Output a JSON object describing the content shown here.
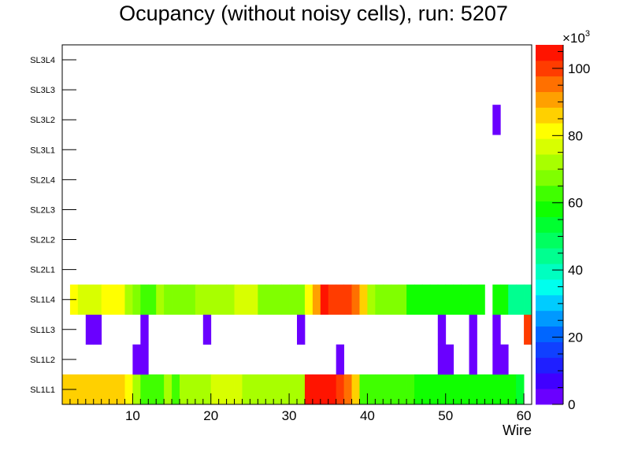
{
  "chart_data": {
    "type": "heatmap",
    "title": "Ocupancy (without noisy cells), run: 5207",
    "xlabel": "Wire",
    "ylabel": "",
    "xlim": [
      1,
      61
    ],
    "x_ticks": [
      10,
      20,
      30,
      40,
      50,
      60
    ],
    "y_categories": [
      "SL1L1",
      "SL1L2",
      "SL1L3",
      "SL1L4",
      "SL2L1",
      "SL2L2",
      "SL2L3",
      "SL2L4",
      "SL3L1",
      "SL3L2",
      "SL3L3",
      "SL3L4"
    ],
    "z_range": [
      0,
      107000
    ],
    "z_ticks": [
      0,
      20,
      40,
      60,
      80,
      100
    ],
    "z_multiplier_label": "×10",
    "z_multiplier_exponent": "3",
    "palette": [
      "#6a00ff",
      "#4000ff",
      "#1f1fff",
      "#1040ff",
      "#0066ff",
      "#0099ff",
      "#00ccff",
      "#00ffee",
      "#00ffc0",
      "#00ff90",
      "#00ff60",
      "#00ff30",
      "#10ff00",
      "#40ff00",
      "#80ff00",
      "#a8ff00",
      "#d8ff00",
      "#ffff00",
      "#ffd000",
      "#ffa000",
      "#ff7000",
      "#ff3c00",
      "#ff1400"
    ],
    "rows": [
      {
        "layer": "SL1L1",
        "values": [
          86000,
          86000,
          86000,
          86000,
          86000,
          86000,
          86000,
          86000,
          80000,
          72000,
          64000,
          64000,
          64000,
          72000,
          64000,
          72000,
          72000,
          72000,
          72000,
          78000,
          78000,
          78000,
          78000,
          74000,
          74000,
          74000,
          74000,
          74000,
          74000,
          74000,
          74000,
          104000,
          104000,
          104000,
          104000,
          98000,
          94000,
          86000,
          64000,
          64000,
          64000,
          64000,
          62000,
          62000,
          62000,
          56000,
          56000,
          56000,
          56000,
          56000,
          56000,
          56000,
          56000,
          56000,
          56000,
          56000,
          56000,
          56000,
          54000,
          null
        ]
      },
      {
        "layer": "SL1L2",
        "values": [
          null,
          null,
          null,
          null,
          null,
          null,
          null,
          null,
          null,
          3000,
          3000,
          null,
          null,
          null,
          null,
          null,
          null,
          null,
          null,
          null,
          null,
          null,
          null,
          null,
          null,
          null,
          null,
          null,
          null,
          null,
          null,
          null,
          null,
          null,
          null,
          3000,
          null,
          null,
          null,
          null,
          null,
          null,
          null,
          null,
          null,
          null,
          null,
          null,
          3000,
          3000,
          null,
          null,
          3000,
          null,
          null,
          3000,
          3000,
          null,
          null,
          null
        ]
      },
      {
        "layer": "SL1L3",
        "values": [
          null,
          null,
          null,
          3000,
          3000,
          null,
          null,
          null,
          null,
          null,
          3000,
          null,
          null,
          null,
          null,
          null,
          null,
          null,
          3000,
          null,
          null,
          null,
          null,
          null,
          null,
          null,
          null,
          null,
          null,
          null,
          3000,
          null,
          null,
          null,
          null,
          null,
          null,
          null,
          null,
          null,
          null,
          null,
          null,
          null,
          null,
          null,
          null,
          null,
          3000,
          null,
          null,
          null,
          3000,
          null,
          null,
          3000,
          null,
          null,
          null,
          100000
        ]
      },
      {
        "layer": "SL1L4",
        "values": [
          null,
          80000,
          76000,
          76000,
          76000,
          80000,
          80000,
          80000,
          72000,
          68000,
          64000,
          64000,
          72000,
          68000,
          68000,
          68000,
          68000,
          72000,
          72000,
          72000,
          72000,
          72000,
          76000,
          76000,
          76000,
          68000,
          68000,
          68000,
          68000,
          68000,
          68000,
          80000,
          90000,
          104000,
          100000,
          100000,
          100000,
          94000,
          86000,
          72000,
          68000,
          68000,
          68000,
          68000,
          56000,
          56000,
          56000,
          58000,
          58000,
          56000,
          56000,
          58000,
          58000,
          58000,
          null,
          56000,
          56000,
          44000,
          44000,
          44000
        ]
      },
      {
        "layer": "SL2L1",
        "values": []
      },
      {
        "layer": "SL2L2",
        "values": []
      },
      {
        "layer": "SL2L3",
        "values": []
      },
      {
        "layer": "SL2L4",
        "values": []
      },
      {
        "layer": "SL3L1",
        "values": []
      },
      {
        "layer": "SL3L2",
        "values": [
          null,
          null,
          null,
          null,
          null,
          null,
          null,
          null,
          null,
          null,
          null,
          null,
          null,
          null,
          null,
          null,
          null,
          null,
          null,
          null,
          null,
          null,
          null,
          null,
          null,
          null,
          null,
          null,
          null,
          null,
          null,
          null,
          null,
          null,
          null,
          null,
          null,
          null,
          null,
          null,
          null,
          null,
          null,
          null,
          null,
          null,
          null,
          null,
          null,
          null,
          null,
          null,
          null,
          null,
          null,
          3000,
          null,
          null,
          null,
          null
        ]
      },
      {
        "layer": "SL3L3",
        "values": []
      },
      {
        "layer": "SL3L4",
        "values": []
      }
    ]
  }
}
